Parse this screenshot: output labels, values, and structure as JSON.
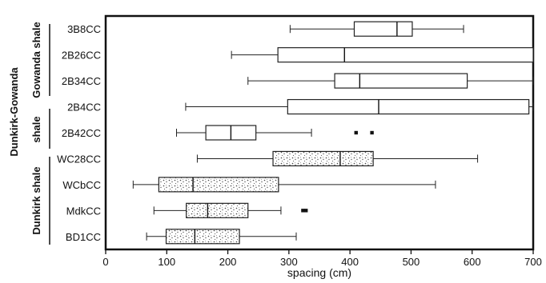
{
  "chart_data": {
    "type": "boxplot",
    "xlabel": "spacing (cm)",
    "xlim": [
      0,
      700
    ],
    "xticks": [
      "0",
      "100",
      "200",
      "300",
      "400",
      "500",
      "600",
      "700"
    ],
    "groups": [
      {
        "label": "Gowanda shale",
        "categories": [
          "3B8CC",
          "2B26CC",
          "2B34CC"
        ]
      },
      {
        "label": "Dunkirk-Gowanda",
        "categories": [
          "2B4CC",
          "2B42CC"
        ]
      },
      {
        "label": "shale",
        "categories": [
          "2B4CC",
          "2B42CC"
        ]
      },
      {
        "label": "Dunkirk shale",
        "categories": [
          "WC28CC",
          "WCbCC",
          "MdkCC",
          "BD1CC"
        ]
      }
    ],
    "series": [
      {
        "category": "3B8CC",
        "min": 302,
        "q1": 407,
        "median": 477,
        "q3": 502,
        "max": 586,
        "outliers": [],
        "fill": "white"
      },
      {
        "category": "2B26CC",
        "min": 206,
        "q1": 282,
        "median": 391,
        "q3": 700,
        "max": 700,
        "outliers": [],
        "fill": "white"
      },
      {
        "category": "2B34CC",
        "min": 233,
        "q1": 375,
        "median": 416,
        "q3": 592,
        "max": 700,
        "outliers": [],
        "fill": "white"
      },
      {
        "category": "2B4CC",
        "min": 131,
        "q1": 298,
        "median": 447,
        "q3": 693,
        "max": 700,
        "outliers": [],
        "fill": "white"
      },
      {
        "category": "2B42CC",
        "min": 116,
        "q1": 164,
        "median": 205,
        "q3": 246,
        "max": 337,
        "outliers": [
          410,
          436
        ],
        "fill": "white"
      },
      {
        "category": "WC28CC",
        "min": 150,
        "q1": 274,
        "median": 384,
        "q3": 438,
        "max": 609,
        "outliers": [],
        "fill": "stipple"
      },
      {
        "category": "WCbCC",
        "min": 45,
        "q1": 87,
        "median": 143,
        "q3": 283,
        "max": 540,
        "outliers": [],
        "fill": "stipple"
      },
      {
        "category": "MdkCC",
        "min": 79,
        "q1": 132,
        "median": 167,
        "q3": 233,
        "max": 287,
        "outliers": [
          323,
          328
        ],
        "fill": "stipple"
      },
      {
        "category": "BD1CC",
        "min": 67,
        "q1": 99,
        "median": 146,
        "q3": 219,
        "max": 312,
        "outliers": [],
        "fill": "stipple"
      }
    ]
  }
}
